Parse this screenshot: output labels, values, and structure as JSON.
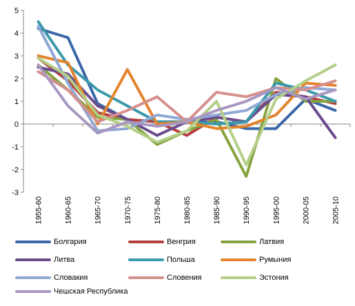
{
  "chart_data": {
    "type": "line",
    "title": "",
    "xlabel": "",
    "ylabel": "",
    "ylim": [
      -3,
      5
    ],
    "yticks": [
      "-3",
      "-2",
      "-1",
      "0",
      "1",
      "2",
      "3",
      "4",
      "5"
    ],
    "categories": [
      "1955-60",
      "1960-65",
      "1965-70",
      "1970-75",
      "1975-80",
      "1980-85",
      "1985-90",
      "1990-95",
      "1995-00",
      "2000-05",
      "2005-10"
    ],
    "grid": false,
    "legend_position": "bottom",
    "series": [
      {
        "name": "Болгария",
        "color": "#3a67a9",
        "values": [
          4.2,
          3.8,
          0.9,
          0.2,
          0.1,
          0.1,
          0.1,
          -0.2,
          -0.2,
          1.1,
          0.6
        ]
      },
      {
        "name": "Венгрия",
        "color": "#b4403e",
        "values": [
          2.9,
          1.9,
          0.5,
          0.2,
          0.1,
          -0.5,
          0.3,
          0.1,
          1.4,
          1.2,
          0.9
        ]
      },
      {
        "name": "Латвия",
        "color": "#86a33f",
        "values": [
          2.6,
          1.5,
          0.3,
          0.2,
          -0.9,
          -0.3,
          0.2,
          -2.3,
          2.0,
          1.0,
          1.0
        ]
      },
      {
        "name": "Литва",
        "color": "#6a4c8c",
        "values": [
          2.5,
          2.2,
          0.8,
          0.2,
          -0.5,
          0.1,
          0.3,
          0.1,
          1.3,
          1.2,
          -0.6
        ]
      },
      {
        "name": "Польша",
        "color": "#3b99ac",
        "values": [
          4.5,
          2.6,
          1.5,
          0.8,
          0.1,
          0.1,
          0.0,
          0.1,
          1.8,
          1.5,
          1.0
        ]
      },
      {
        "name": "Румыния",
        "color": "#e3842d",
        "values": [
          3.0,
          2.7,
          0.0,
          2.4,
          0.0,
          0.1,
          -0.2,
          -0.1,
          0.4,
          1.8,
          1.7
        ]
      },
      {
        "name": "Словакия",
        "color": "#8fa8d4",
        "values": [
          4.3,
          1.8,
          -0.3,
          -0.2,
          0.4,
          0.2,
          0.4,
          0.6,
          1.3,
          1.6,
          1.5
        ]
      },
      {
        "name": "Словения",
        "color": "#d58f8d",
        "values": [
          2.3,
          1.5,
          0.1,
          0.6,
          1.2,
          0.1,
          1.4,
          1.2,
          1.6,
          1.5,
          1.9
        ]
      },
      {
        "name": "Эстония",
        "color": "#b3cf88",
        "values": [
          2.9,
          2.1,
          0.4,
          -0.1,
          -0.8,
          -0.3,
          1.0,
          -1.8,
          1.1,
          1.9,
          2.6
        ]
      },
      {
        "name": "Чешская Республика",
        "color": "#a897c0",
        "values": [
          2.6,
          0.8,
          -0.4,
          0.1,
          -0.1,
          0.1,
          0.6,
          1.0,
          1.6,
          1.1,
          1.5
        ]
      }
    ]
  }
}
